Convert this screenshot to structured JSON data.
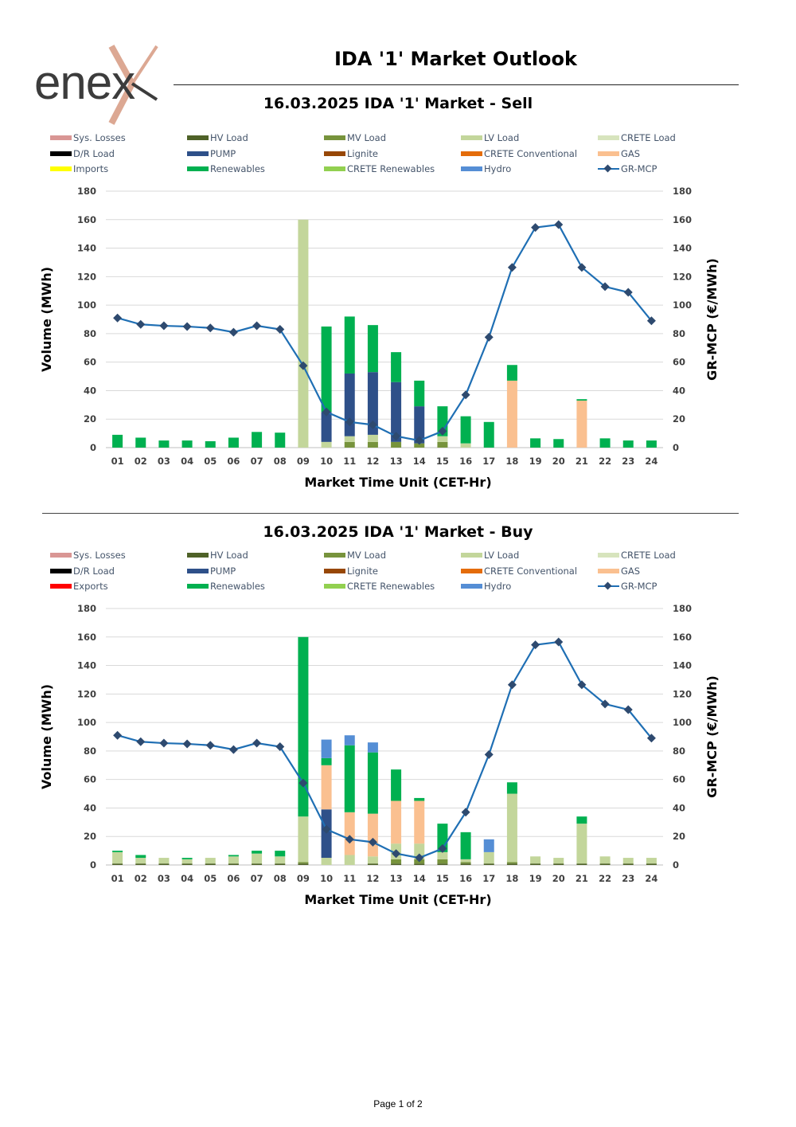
{
  "header": {
    "title": "IDA '1' Market Outlook",
    "logo_text": "enex"
  },
  "footer": {
    "page_label": "Page 1 of 2"
  },
  "colors": {
    "Sys. Losses": "#d99694",
    "HV Load": "#4f6228",
    "MV Load": "#77933c",
    "LV Load": "#c3d69b",
    "CRETE Load": "#d7e4bd",
    "D/R Load": "#000000",
    "PUMP": "#2e5089",
    "Lignite": "#974706",
    "CRETE Conventional": "#e46c0a",
    "GAS": "#fac090",
    "Imports": "#ffff00",
    "Exports": "#ff0000",
    "Renewables": "#00b050",
    "CRETE Renewables": "#92d050",
    "Hydro": "#558ed5",
    "GR-MCP": "#1f6fb4",
    "marker": "#2e4a6f"
  },
  "chart_data": [
    {
      "type": "bar",
      "title": "16.03.2025  IDA '1' Market - Sell",
      "xlabel": "Market Time Unit (CET-Hr)",
      "ylabel": "Volume (MWh)",
      "y2label": "GR-MCP (€/MWh)",
      "ylim": [
        0,
        180
      ],
      "y2lim": [
        0,
        180
      ],
      "ticks": [
        0,
        20,
        40,
        60,
        80,
        100,
        120,
        140,
        160,
        180
      ],
      "categories": [
        "01",
        "02",
        "03",
        "04",
        "05",
        "06",
        "07",
        "08",
        "09",
        "10",
        "11",
        "12",
        "13",
        "14",
        "15",
        "16",
        "17",
        "18",
        "19",
        "20",
        "21",
        "22",
        "23",
        "24"
      ],
      "legend": [
        "Sys. Losses",
        "HV Load",
        "MV Load",
        "LV Load",
        "CRETE Load",
        "D/R Load",
        "PUMP",
        "Lignite",
        "CRETE Conventional",
        "GAS",
        "Imports",
        "Renewables",
        "CRETE Renewables",
        "Hydro",
        "GR-MCP"
      ],
      "series": [
        {
          "name": "MV Load",
          "values": [
            0,
            0,
            0,
            0,
            0,
            0,
            0,
            0,
            0,
            0,
            4,
            4,
            4,
            3,
            4,
            0,
            0,
            0,
            0,
            0,
            0,
            0,
            0,
            0
          ]
        },
        {
          "name": "LV Load",
          "values": [
            0,
            0,
            0,
            0,
            0,
            0,
            0,
            0,
            160,
            4,
            4,
            5,
            0,
            0,
            4,
            3,
            0,
            0,
            0,
            0,
            0,
            0,
            0,
            0
          ]
        },
        {
          "name": "PUMP",
          "values": [
            0,
            0,
            0,
            0,
            0,
            0,
            0,
            0,
            0,
            21,
            44,
            44,
            42,
            26,
            0,
            0,
            0,
            0,
            0,
            0,
            0,
            0,
            0,
            0
          ]
        },
        {
          "name": "GAS",
          "values": [
            0,
            0,
            0,
            0,
            0,
            0,
            0,
            0,
            0,
            0,
            0,
            0,
            0,
            0,
            0,
            0,
            0,
            47,
            0,
            0,
            33,
            0,
            0,
            0
          ]
        },
        {
          "name": "Renewables",
          "values": [
            9,
            7,
            5,
            5,
            4.5,
            7,
            11,
            10.5,
            0,
            60,
            40,
            33,
            21,
            18,
            21,
            19,
            18,
            11,
            6.5,
            6,
            1,
            6.5,
            5,
            5
          ]
        }
      ],
      "line": {
        "name": "GR-MCP",
        "values": [
          91,
          86.5,
          85.5,
          85,
          84,
          81,
          85.5,
          83,
          57.5,
          25,
          18,
          16,
          8,
          5,
          11.5,
          37,
          77.5,
          126.5,
          154.5,
          156.5,
          126.5,
          113,
          109,
          89
        ]
      }
    },
    {
      "type": "bar",
      "title": "16.03.2025  IDA '1' Market - Buy",
      "xlabel": "Market Time Unit (CET-Hr)",
      "ylabel": "Volume (MWh)",
      "y2label": "GR-MCP (€/MWh)",
      "ylim": [
        0,
        180
      ],
      "y2lim": [
        0,
        180
      ],
      "ticks": [
        0,
        20,
        40,
        60,
        80,
        100,
        120,
        140,
        160,
        180
      ],
      "categories": [
        "01",
        "02",
        "03",
        "04",
        "05",
        "06",
        "07",
        "08",
        "09",
        "10",
        "11",
        "12",
        "13",
        "14",
        "15",
        "16",
        "17",
        "18",
        "19",
        "20",
        "21",
        "22",
        "23",
        "24"
      ],
      "legend": [
        "Sys. Losses",
        "HV Load",
        "MV Load",
        "LV Load",
        "CRETE Load",
        "D/R Load",
        "PUMP",
        "Lignite",
        "CRETE Conventional",
        "GAS",
        "Exports",
        "Renewables",
        "CRETE Renewables",
        "Hydro",
        "GR-MCP"
      ],
      "series": [
        {
          "name": "HV Load",
          "values": [
            1,
            1,
            1,
            1,
            1,
            1,
            1,
            1,
            1,
            0,
            0,
            1,
            1,
            1,
            1,
            1,
            1,
            1,
            1,
            1,
            1,
            1,
            1,
            1
          ]
        },
        {
          "name": "MV Load",
          "values": [
            0,
            0,
            0,
            0,
            0,
            0,
            0,
            0,
            1,
            0,
            0,
            0,
            3,
            3,
            3,
            1,
            0,
            1,
            0,
            0,
            0,
            0,
            0,
            0
          ]
        },
        {
          "name": "LV Load",
          "values": [
            8,
            4,
            4,
            3,
            4,
            5,
            7,
            5,
            32,
            5,
            7,
            5,
            11,
            11,
            5,
            2,
            8,
            48,
            5,
            4,
            28,
            5,
            4,
            4
          ]
        },
        {
          "name": "PUMP",
          "values": [
            0,
            0,
            0,
            0,
            0,
            0,
            0,
            0,
            0,
            34,
            0,
            0,
            0,
            0,
            0,
            0,
            0,
            0,
            0,
            0,
            0,
            0,
            0,
            0
          ]
        },
        {
          "name": "GAS",
          "values": [
            0,
            0,
            0,
            0,
            0,
            0,
            0,
            0,
            0,
            31,
            30,
            30,
            30,
            30,
            0,
            0,
            0,
            0,
            0,
            0,
            0,
            0,
            0,
            0
          ]
        },
        {
          "name": "Renewables",
          "values": [
            1,
            2,
            0,
            1,
            0,
            1,
            2,
            4,
            126,
            5,
            47,
            43,
            22,
            2,
            20,
            19,
            0,
            8,
            0,
            0,
            5,
            0,
            0,
            0
          ]
        },
        {
          "name": "Hydro",
          "values": [
            0,
            0,
            0,
            0,
            0,
            0,
            0,
            0,
            0,
            13,
            7,
            7,
            0,
            0,
            0,
            0,
            9,
            0,
            0,
            0,
            0,
            0,
            0,
            0
          ]
        }
      ],
      "line": {
        "name": "GR-MCP",
        "values": [
          91,
          86.5,
          85.5,
          85,
          84,
          81,
          85.5,
          83,
          57.5,
          25,
          18,
          16,
          8,
          5,
          11.5,
          37,
          77.5,
          126.5,
          154.5,
          156.5,
          126.5,
          113,
          109,
          89
        ]
      }
    }
  ]
}
